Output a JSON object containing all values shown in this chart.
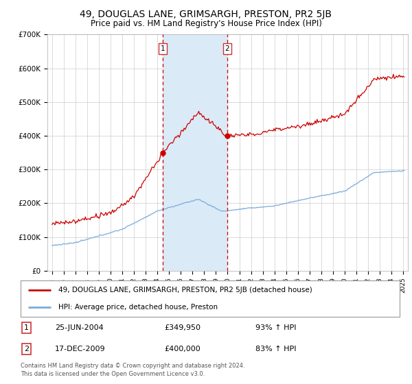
{
  "title": "49, DOUGLAS LANE, GRIMSARGH, PRESTON, PR2 5JB",
  "subtitle": "Price paid vs. HM Land Registry's House Price Index (HPI)",
  "title_fontsize": 10,
  "subtitle_fontsize": 8.5,
  "ylim": [
    0,
    700000
  ],
  "yticks": [
    0,
    100000,
    200000,
    300000,
    400000,
    500000,
    600000,
    700000
  ],
  "ytick_labels": [
    "£0",
    "£100K",
    "£200K",
    "£300K",
    "£400K",
    "£500K",
    "£600K",
    "£700K"
  ],
  "sale1_date": "25-JUN-2004",
  "sale1_price": 349950,
  "sale1_label": "93% ↑ HPI",
  "sale2_date": "17-DEC-2009",
  "sale2_price": 400000,
  "sale2_label": "83% ↑ HPI",
  "sale1_x": 2004.48,
  "sale2_x": 2009.96,
  "red_line_color": "#cc0000",
  "blue_line_color": "#7aabdb",
  "shade_color": "#daeaf7",
  "legend_red_label": "49, DOUGLAS LANE, GRIMSARGH, PRESTON, PR2 5JB (detached house)",
  "legend_blue_label": "HPI: Average price, detached house, Preston",
  "footer_line1": "Contains HM Land Registry data © Crown copyright and database right 2024.",
  "footer_line2": "This data is licensed under the Open Government Licence v3.0.",
  "bg_color": "#ffffff",
  "grid_color": "#cccccc",
  "xlim_left": 1994.6,
  "xlim_right": 2025.4
}
